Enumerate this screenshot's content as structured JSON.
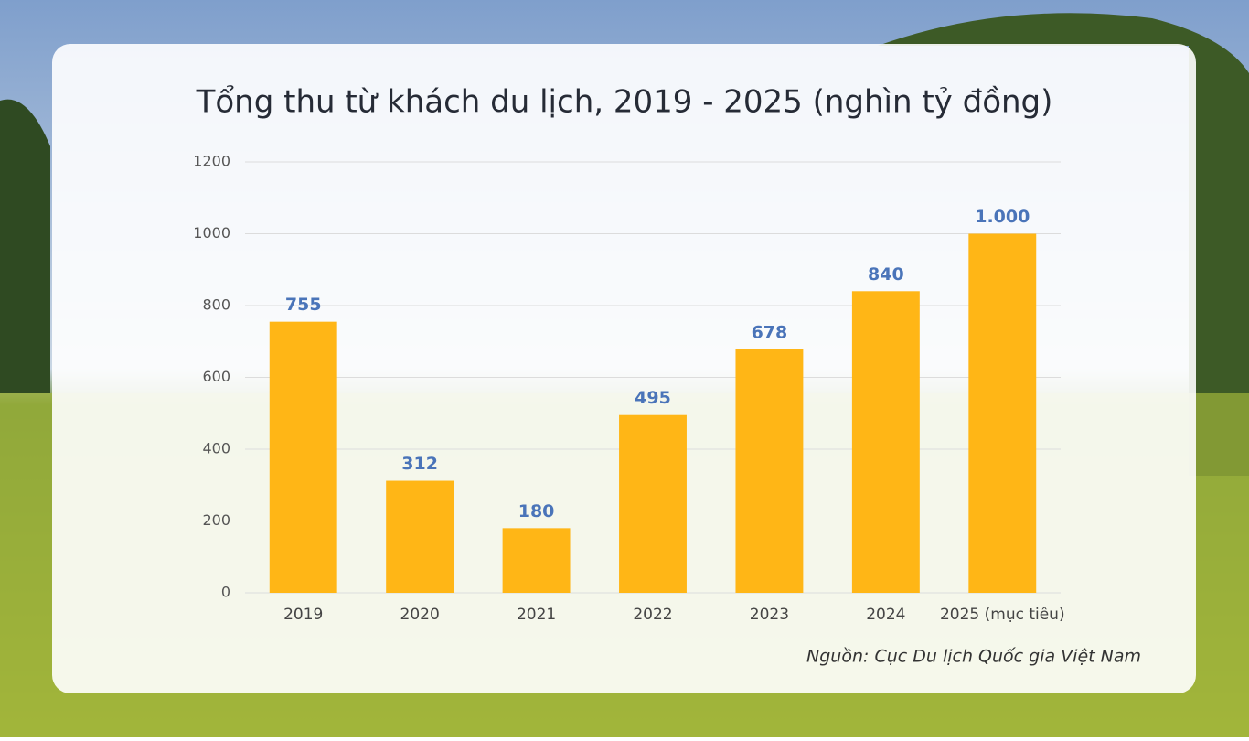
{
  "chart_data": {
    "type": "bar",
    "title": "Tổng thu từ khách du lịch, 2019 - 2025 (nghìn tỷ đồng)",
    "categories": [
      "2019",
      "2020",
      "2021",
      "2022",
      "2023",
      "2024",
      "2025 (mục tiêu)"
    ],
    "values": [
      755,
      312,
      180,
      495,
      678,
      840,
      1000
    ],
    "value_labels": [
      "755",
      "312",
      "180",
      "495",
      "678",
      "840",
      "1.000"
    ],
    "color": "#ffb616",
    "label_color": "#4a74b9",
    "ylim": [
      0,
      1200
    ],
    "yticks": [
      0,
      200,
      400,
      600,
      800,
      1000,
      1200
    ],
    "grid": true,
    "source": "Nguồn: Cục Du lịch Quốc gia Việt Nam"
  }
}
